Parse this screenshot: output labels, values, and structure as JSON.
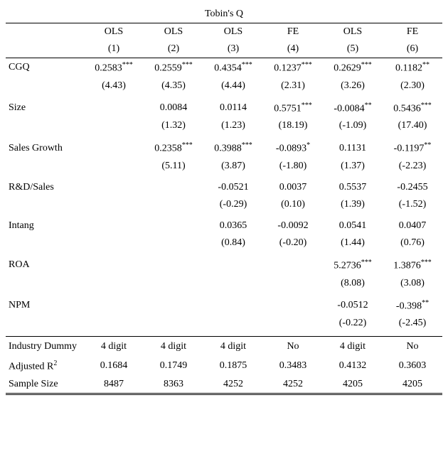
{
  "title": "Tobin's Q",
  "col_headers": [
    "OLS",
    "OLS",
    "OLS",
    "FE",
    "OLS",
    "FE"
  ],
  "col_nums": [
    "(1)",
    "(2)",
    "(3)",
    "(4)",
    "(5)",
    "(6)"
  ],
  "rows": {
    "cgq": {
      "label": "CGQ",
      "coef": [
        "0.2583",
        "0.2559",
        "0.4354",
        "0.1237",
        "0.2629",
        "0.1182"
      ],
      "sig": [
        "***",
        "***",
        "***",
        "***",
        "***",
        "**"
      ],
      "t": [
        "(4.43)",
        "(4.35)",
        "(4.44)",
        "(2.31)",
        "(3.26)",
        "(2.30)"
      ]
    },
    "size": {
      "label": "Size",
      "coef": [
        "",
        "0.0084",
        "0.0114",
        "0.5751",
        "-0.0084",
        "0.5436"
      ],
      "sig": [
        "",
        "",
        "",
        "***",
        "**",
        "***"
      ],
      "t": [
        "",
        "(1.32)",
        "(1.23)",
        "(18.19)",
        "(-1.09)",
        "(17.40)"
      ]
    },
    "sg": {
      "label": "Sales Growth",
      "coef": [
        "",
        "0.2358",
        "0.3988",
        "-0.0893",
        "0.1131",
        "-0.1197"
      ],
      "sig": [
        "",
        "***",
        "***",
        "*",
        "",
        "**"
      ],
      "t": [
        "",
        "(5.11)",
        "(3.87)",
        "(-1.80)",
        "(1.37)",
        "(-2.23)"
      ]
    },
    "rd": {
      "label": "R&D/Sales",
      "coef": [
        "",
        "",
        "-0.0521",
        "0.0037",
        "0.5537",
        "-0.2455"
      ],
      "sig": [
        "",
        "",
        "",
        "",
        "",
        ""
      ],
      "t": [
        "",
        "",
        "(-0.29)",
        "(0.10)",
        "(1.39)",
        "(-1.52)"
      ]
    },
    "intang": {
      "label": "Intang",
      "coef": [
        "",
        "",
        "0.0365",
        "-0.0092",
        "0.0541",
        "0.0407"
      ],
      "sig": [
        "",
        "",
        "",
        "",
        "",
        ""
      ],
      "t": [
        "",
        "",
        "(0.84)",
        "(-0.20)",
        "(1.44)",
        "(0.76)"
      ]
    },
    "roa": {
      "label": "ROA",
      "coef": [
        "",
        "",
        "",
        "",
        "5.2736",
        "1.3876"
      ],
      "sig": [
        "",
        "",
        "",
        "",
        "***",
        "***"
      ],
      "t": [
        "",
        "",
        "",
        "",
        "(8.08)",
        "(3.08)"
      ]
    },
    "npm": {
      "label": "NPM",
      "coef": [
        "",
        "",
        "",
        "",
        "-0.0512",
        "-0.398"
      ],
      "sig": [
        "",
        "",
        "",
        "",
        "",
        "**"
      ],
      "t": [
        "",
        "",
        "",
        "",
        "(-0.22)",
        "(-2.45)"
      ]
    }
  },
  "footer": {
    "ind": {
      "label": "Industry Dummy",
      "vals": [
        "4 digit",
        "4 digit",
        "4 digit",
        "No",
        "4 digit",
        "No"
      ]
    },
    "r2": {
      "label": "Adjusted R",
      "sup": "2",
      "vals": [
        "0.1684",
        "0.1749",
        "0.1875",
        "0.3483",
        "0.4132",
        "0.3603"
      ]
    },
    "n": {
      "label": "Sample Size",
      "vals": [
        "8487",
        "8363",
        "4252",
        "4252",
        "4205",
        "4205"
      ]
    }
  }
}
